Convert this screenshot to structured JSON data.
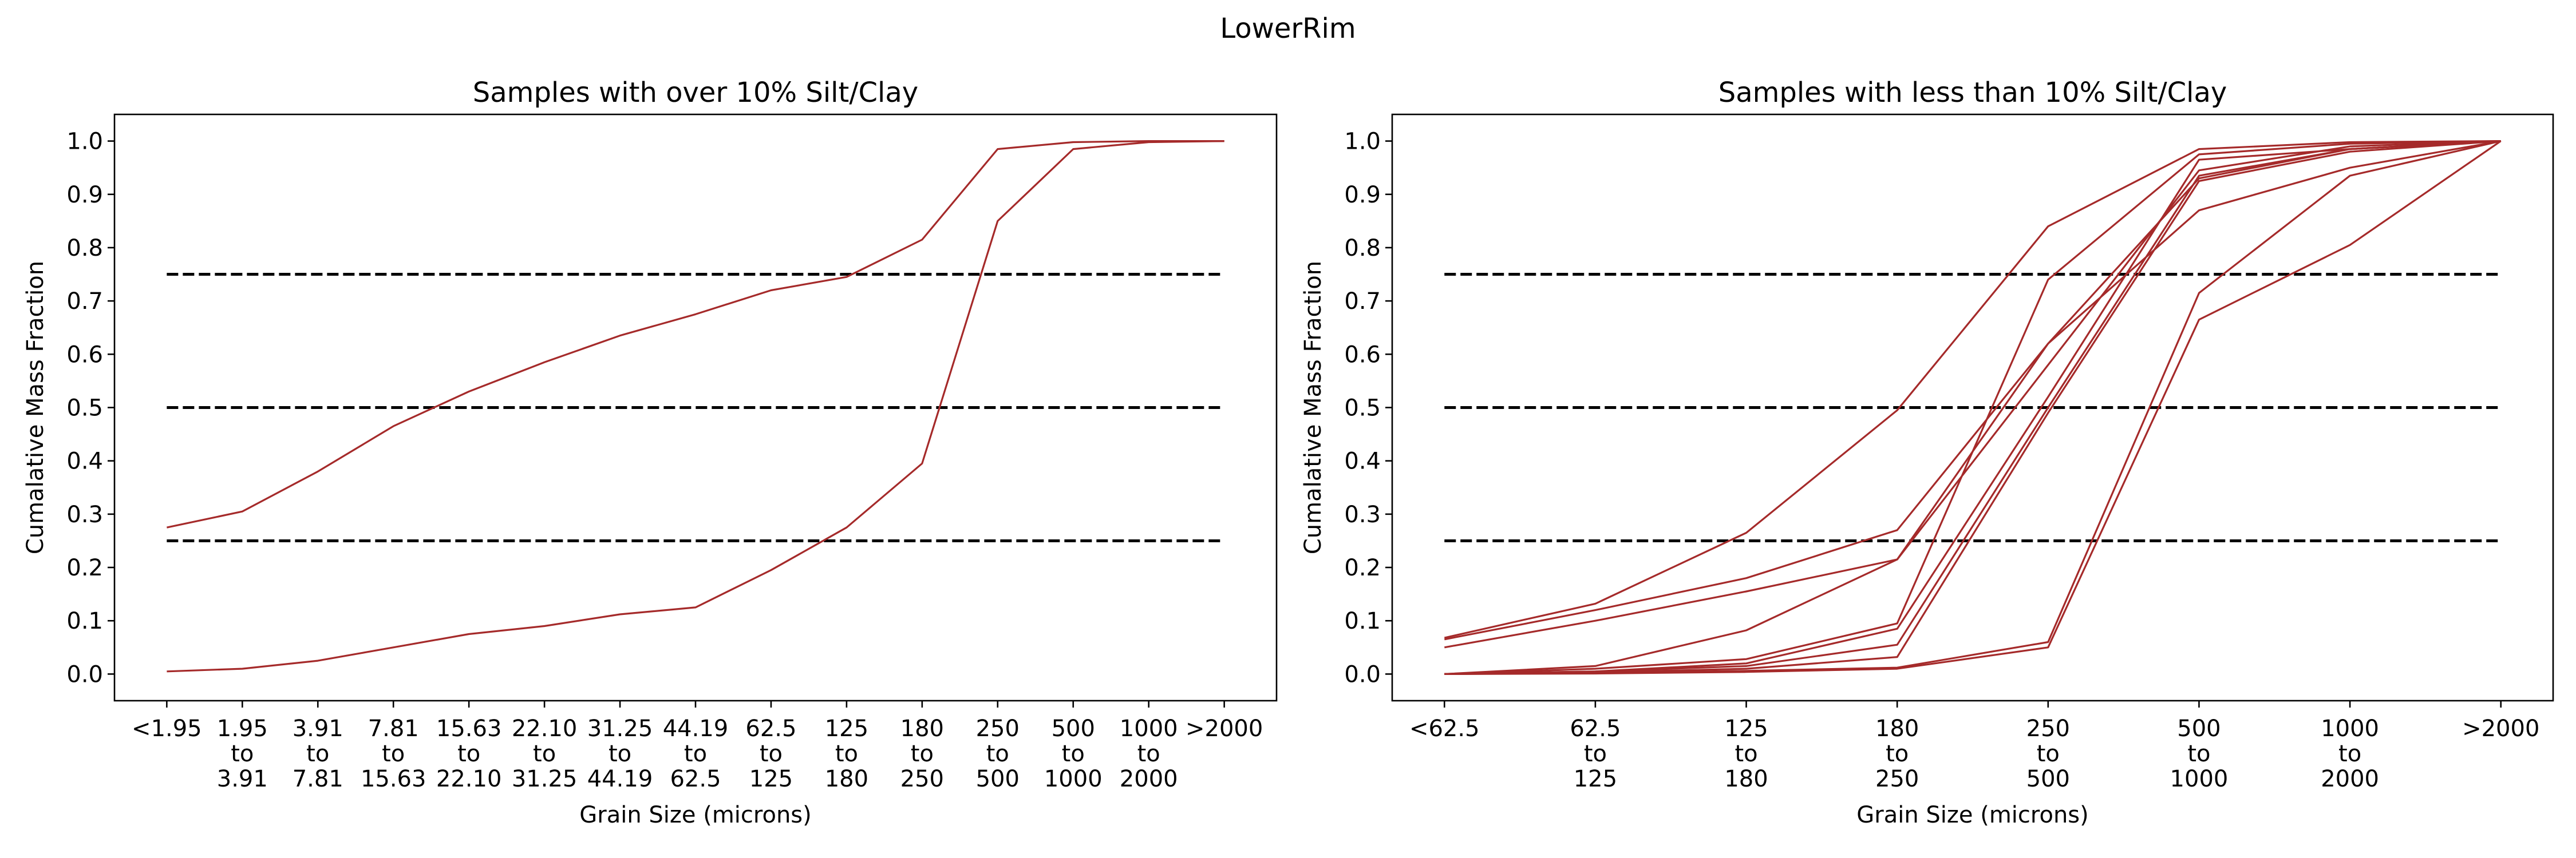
{
  "figure": {
    "title": "LowerRim",
    "line_color": "#a52a2a"
  },
  "chart_data": [
    {
      "type": "line",
      "title": "Samples with over 10% Silt/Clay",
      "xlabel": "Grain Size (microns)",
      "ylabel": "Cumalative Mass Fraction",
      "categories": [
        [
          "<1.95"
        ],
        [
          "1.95",
          "to",
          "3.91"
        ],
        [
          "3.91",
          "to",
          "7.81"
        ],
        [
          "7.81",
          "to",
          "15.63"
        ],
        [
          "15.63",
          "to",
          "22.10"
        ],
        [
          "22.10",
          "to",
          "31.25"
        ],
        [
          "31.25",
          "to",
          "44.19"
        ],
        [
          "44.19",
          "to",
          "62.5"
        ],
        [
          "62.5",
          "to",
          "125"
        ],
        [
          "125",
          "to",
          "180"
        ],
        [
          "180",
          "to",
          "250"
        ],
        [
          "250",
          "to",
          "500"
        ],
        [
          "500",
          "to",
          "1000"
        ],
        [
          "1000",
          "to",
          "2000"
        ],
        [
          ">2000"
        ]
      ],
      "ylim": [
        -0.05,
        1.05
      ],
      "yticks": [
        "0.0",
        "0.1",
        "0.2",
        "0.3",
        "0.4",
        "0.5",
        "0.6",
        "0.7",
        "0.8",
        "0.9",
        "1.0"
      ],
      "reference_lines": [
        0.25,
        0.5,
        0.75
      ],
      "grid": false,
      "series": [
        {
          "values": [
            0.275,
            0.305,
            0.38,
            0.465,
            0.53,
            0.585,
            0.635,
            0.675,
            0.72,
            0.745,
            0.815,
            0.985,
            0.998,
            1.0,
            1.0
          ]
        },
        {
          "values": [
            0.005,
            0.01,
            0.025,
            0.05,
            0.075,
            0.09,
            0.112,
            0.125,
            0.195,
            0.275,
            0.395,
            0.85,
            0.985,
            0.998,
            1.0
          ]
        }
      ]
    },
    {
      "type": "line",
      "title": "Samples with less than 10% Silt/Clay",
      "xlabel": "Grain Size (microns)",
      "ylabel": "Cumalative Mass Fraction",
      "categories": [
        [
          "<62.5"
        ],
        [
          "62.5",
          "to",
          "125"
        ],
        [
          "125",
          "to",
          "180"
        ],
        [
          "180",
          "to",
          "250"
        ],
        [
          "250",
          "to",
          "500"
        ],
        [
          "500",
          "to",
          "1000"
        ],
        [
          "1000",
          "to",
          "2000"
        ],
        [
          ">2000"
        ]
      ],
      "ylim": [
        -0.05,
        1.05
      ],
      "yticks": [
        "0.0",
        "0.1",
        "0.2",
        "0.3",
        "0.4",
        "0.5",
        "0.6",
        "0.7",
        "0.8",
        "0.9",
        "1.0"
      ],
      "reference_lines": [
        0.25,
        0.5,
        0.75
      ],
      "grid": false,
      "series": [
        {
          "values": [
            0.068,
            0.132,
            0.265,
            0.495,
            0.84,
            0.985,
            0.998,
            1.0
          ]
        },
        {
          "values": [
            0.065,
            0.12,
            0.18,
            0.27,
            0.62,
            0.87,
            0.95,
            1.0
          ]
        },
        {
          "values": [
            0.05,
            0.1,
            0.155,
            0.215,
            0.62,
            0.93,
            0.985,
            1.0
          ]
        },
        {
          "values": [
            0.0,
            0.015,
            0.082,
            0.215,
            0.58,
            0.945,
            0.99,
            1.0
          ]
        },
        {
          "values": [
            0.0,
            0.01,
            0.028,
            0.095,
            0.74,
            0.975,
            0.995,
            1.0
          ]
        },
        {
          "values": [
            0.0,
            0.005,
            0.02,
            0.085,
            0.52,
            0.965,
            0.985,
            1.0
          ]
        },
        {
          "values": [
            0.0,
            0.005,
            0.015,
            0.055,
            0.5,
            0.935,
            0.985,
            1.0
          ]
        },
        {
          "values": [
            0.0,
            0.003,
            0.01,
            0.032,
            0.49,
            0.925,
            0.98,
            1.0
          ]
        },
        {
          "values": [
            0.0,
            0.002,
            0.006,
            0.012,
            0.06,
            0.715,
            0.935,
            1.0
          ]
        },
        {
          "values": [
            0.0,
            0.001,
            0.004,
            0.01,
            0.05,
            0.665,
            0.805,
            1.0
          ]
        }
      ]
    }
  ]
}
